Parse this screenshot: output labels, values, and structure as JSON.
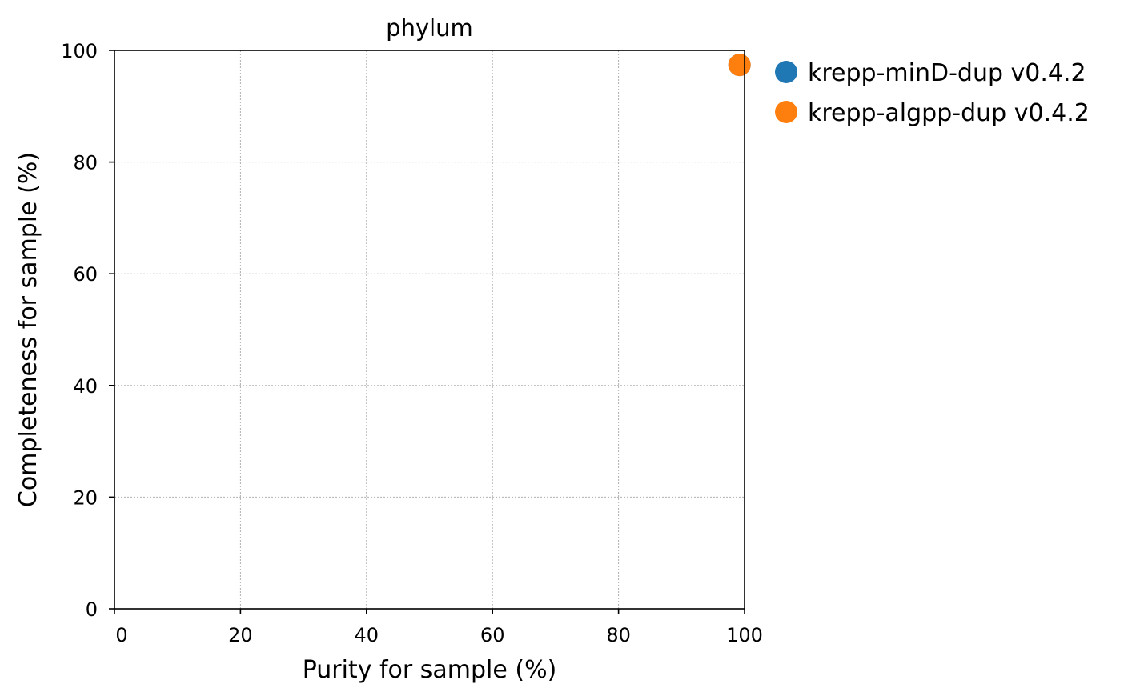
{
  "chart_data": {
    "type": "scatter",
    "title": "phylum",
    "xlabel": "Purity for sample (%)",
    "ylabel": "Completeness for sample (%)",
    "xlim": [
      0,
      100
    ],
    "ylim": [
      0,
      100
    ],
    "xticks": [
      0,
      20,
      40,
      60,
      80,
      100
    ],
    "yticks": [
      0,
      20,
      40,
      60,
      80,
      100
    ],
    "grid": true,
    "legend_position": "outside-right-top",
    "series": [
      {
        "name": "krepp-minD-dup v0.4.2",
        "color": "#1f77b4",
        "points": [
          {
            "x": 99.2,
            "y": 97.4
          }
        ]
      },
      {
        "name": "krepp-algpp-dup v0.4.2",
        "color": "#ff7f0e",
        "points": [
          {
            "x": 99.2,
            "y": 97.4
          }
        ]
      }
    ]
  }
}
